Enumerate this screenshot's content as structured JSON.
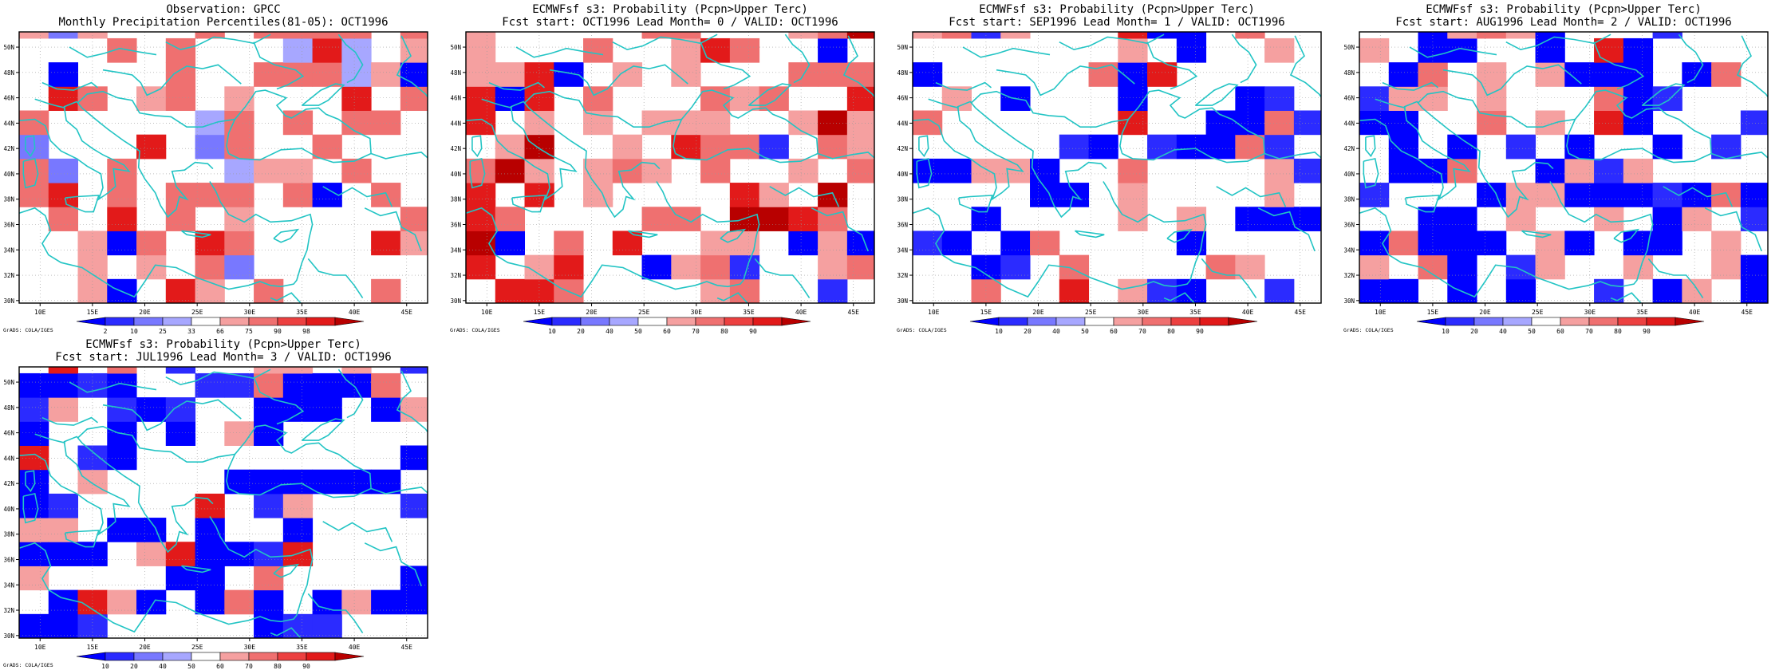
{
  "panels": [
    {
      "title_line1": "Observation: GPCC",
      "title_line2": "Monthly Precipitation Percentiles(81-05): OCT1996",
      "colorbar_ticks": [
        "2",
        "10",
        "25",
        "33",
        "66",
        "75",
        "90",
        "98"
      ],
      "credit": "GrADS: COLA/IGES"
    },
    {
      "title_line1": "ECMWFsf s3: Probability (Pcpn>Upper Terc)",
      "title_line2": "Fcst start: OCT1996  Lead Month= 0 / VALID: OCT1996",
      "colorbar_ticks": [
        "10",
        "20",
        "40",
        "50",
        "60",
        "70",
        "80",
        "90"
      ],
      "credit": "GrADS: COLA/IGES"
    },
    {
      "title_line1": "ECMWFsf s3: Probability (Pcpn>Upper Terc)",
      "title_line2": "Fcst start: SEP1996  Lead Month= 1 / VALID: OCT1996",
      "colorbar_ticks": [
        "10",
        "20",
        "40",
        "50",
        "60",
        "70",
        "80",
        "90"
      ],
      "credit": "GrADS: COLA/IGES"
    },
    {
      "title_line1": "ECMWFsf s3: Probability (Pcpn>Upper Terc)",
      "title_line2": "Fcst start: AUG1996  Lead Month= 2 / VALID: OCT1996",
      "colorbar_ticks": [
        "10",
        "20",
        "40",
        "50",
        "60",
        "70",
        "80",
        "90"
      ],
      "credit": "GrADS: COLA/IGES"
    },
    {
      "title_line1": "ECMWFsf s3: Probability (Pcpn>Upper Terc)",
      "title_line2": "Fcst start: JUL1996  Lead Month= 3 / VALID: OCT1996",
      "colorbar_ticks": [
        "10",
        "20",
        "40",
        "50",
        "60",
        "70",
        "80",
        "90"
      ],
      "credit": "GrADS: COLA/IGES"
    }
  ],
  "axes": {
    "lon_labels": [
      "10E",
      "15E",
      "20E",
      "25E",
      "30E",
      "35E",
      "40E",
      "45E"
    ],
    "lat_labels": [
      "30N",
      "32N",
      "34N",
      "36N",
      "38N",
      "40N",
      "42N",
      "44N",
      "46N",
      "48N",
      "50N"
    ],
    "lon_range": [
      8,
      47
    ],
    "lat_range": [
      29.8,
      51.2
    ]
  },
  "colors": {
    "coast": "#22c4c4",
    "legend": [
      "#0000ff",
      "#2b2bff",
      "#7878ff",
      "#a7a7ff",
      "#ffffff",
      "#f5a0a0",
      "#ef7070",
      "#ec4040",
      "#e21a1a",
      "#b80000"
    ]
  }
}
